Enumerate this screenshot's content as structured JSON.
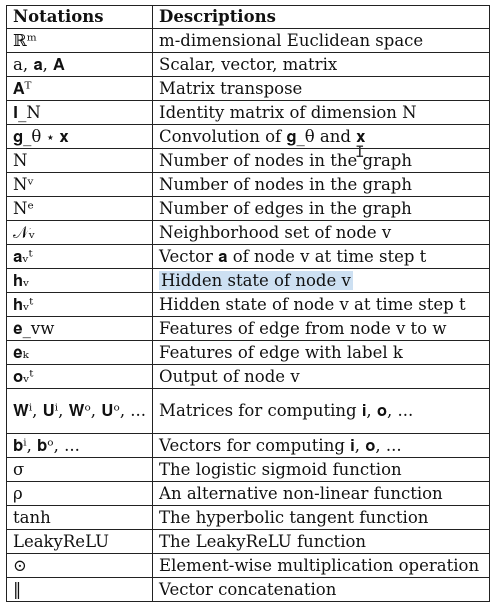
{
  "table": {
    "headers": [
      "Notations",
      "Descriptions"
    ],
    "highlight_color": "#cde0f2",
    "rows": [
      {
        "notation": "ℝᵐ",
        "description": "m-dimensional Euclidean space"
      },
      {
        "notation": "a, 𝐚, 𝐀",
        "description": "Scalar, vector, matrix"
      },
      {
        "notation": "𝐀ᵀ",
        "description": "Matrix transpose"
      },
      {
        "notation": "𝐈_N",
        "description": "Identity matrix of dimension N"
      },
      {
        "notation": "𝐠_θ ⋆ 𝐱",
        "description": "Convolution of 𝐠_θ and 𝐱"
      },
      {
        "notation": "N",
        "description": "Number of nodes in the graph"
      },
      {
        "notation": "Nᵛ",
        "description": "Number of nodes in the graph"
      },
      {
        "notation": "Nᵉ",
        "description": "Number of edges in the graph"
      },
      {
        "notation": "𝒩ᵥ",
        "description": "Neighborhood set of node v"
      },
      {
        "notation": "𝐚ᵥᵗ",
        "description": "Vector 𝐚 of node v at time step t"
      },
      {
        "notation": "𝐡ᵥ",
        "description": "Hidden state of node v",
        "highlight": true
      },
      {
        "notation": "𝐡ᵥᵗ",
        "description": "Hidden state of node v at time step t"
      },
      {
        "notation": "𝐞_vw",
        "description": "Features of edge from node v to w"
      },
      {
        "notation": "𝐞ₖ",
        "description": "Features of edge with label k"
      },
      {
        "notation": "𝐨ᵥᵗ",
        "description": "Output of node v"
      },
      {
        "notation": "𝐖ⁱ, 𝐔ⁱ, 𝐖ᵒ, 𝐔ᵒ, ...",
        "description": "Matrices for computing 𝐢, 𝐨, ...",
        "tall": true
      },
      {
        "notation": "𝐛ⁱ, 𝐛ᵒ, ...",
        "description": "Vectors for computing 𝐢, 𝐨, ..."
      },
      {
        "notation": "σ",
        "description": "The logistic sigmoid function"
      },
      {
        "notation": "ρ",
        "description": "An alternative non-linear function"
      },
      {
        "notation": "tanh",
        "description": "The hyperbolic tangent function"
      },
      {
        "notation": "LeakyReLU",
        "description": "The LeakyReLU function"
      },
      {
        "notation": "⊙",
        "description": "Element-wise multiplication operation"
      },
      {
        "notation": "‖",
        "description": "Vector concatenation"
      }
    ]
  },
  "cursor": {
    "icon": "text-cursor-icon",
    "glyph": "I"
  }
}
